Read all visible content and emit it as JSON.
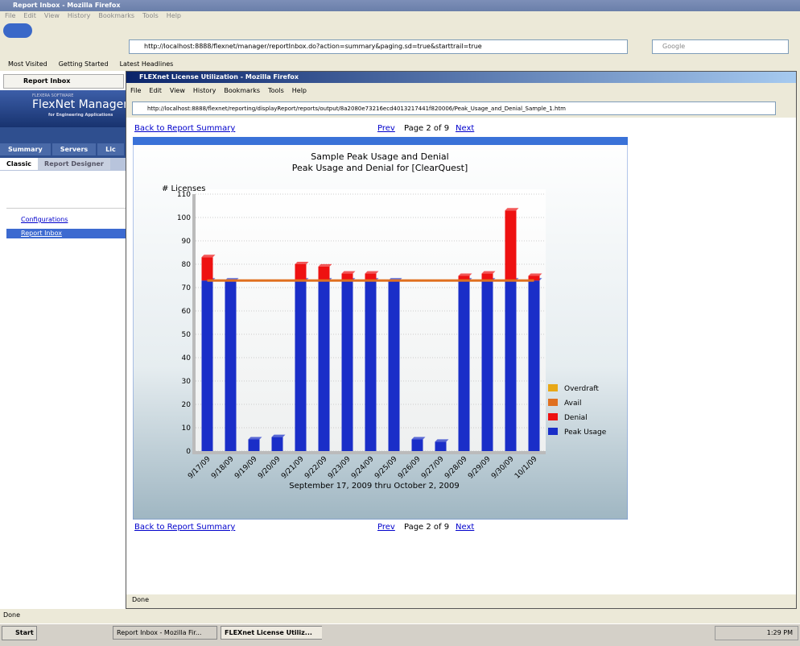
{
  "outer": {
    "title": "Report Inbox - Mozilla Firefox",
    "menu": [
      "File",
      "Edit",
      "View",
      "History",
      "Bookmarks",
      "Tools",
      "Help"
    ],
    "url": "http://localhost:8888/flexnet/manager/reportInbox.do?action=summary&paging.sd=true&starttrail=true",
    "search": "Google",
    "bookmarks": [
      "Most Visited",
      "Getting Started",
      "Latest Headlines"
    ],
    "status": "Done"
  },
  "sidebar": {
    "tab": "Report Inbox",
    "logo_small": "FLEXERA SOFTWARE",
    "logo": "FlexNet Manager",
    "logo_sub": "for Engineering Applications",
    "tabs": [
      "Summary",
      "Servers",
      "Lic"
    ],
    "subtabs": [
      "Classic",
      "Report Designer"
    ],
    "links": [
      "Configurations",
      "Report Inbox"
    ]
  },
  "inner": {
    "title": "FLEXnet License Utilization - Mozilla Firefox",
    "menu": [
      "File",
      "Edit",
      "View",
      "History",
      "Bookmarks",
      "Tools",
      "Help"
    ],
    "url": "http://localhost:8888/flexnet/reporting/displayReport/reports/output/8a2080e73216ecd4013217441f820006/Peak_Usage_and_Denial_Sample_1.htm",
    "status": "Done"
  },
  "nav": {
    "back": "Back to Report Summary",
    "prev": "Prev",
    "page": "Page 2 of 9",
    "next": "Next"
  },
  "chart_data": {
    "type": "bar",
    "stacked": true,
    "title": "Sample Peak Usage and Denial",
    "subtitle": "Peak Usage and Denial for [ClearQuest]",
    "y_label": "# Licenses",
    "x_label": "September 17, 2009 thru October 2, 2009",
    "categories": [
      "9/17/09",
      "9/18/09",
      "9/19/09",
      "9/20/09",
      "9/21/09",
      "9/22/09",
      "9/23/09",
      "9/24/09",
      "9/25/09",
      "9/26/09",
      "9/27/09",
      "9/28/09",
      "9/29/09",
      "9/30/09",
      "10/1/09"
    ],
    "series": [
      {
        "name": "Peak Usage",
        "color": "#1a2ec8",
        "values": [
          73,
          73,
          5,
          6,
          73,
          73,
          73,
          73,
          73,
          5,
          4,
          73,
          73,
          73,
          73
        ]
      },
      {
        "name": "Denial",
        "color": "#ee1111",
        "values": [
          10,
          0,
          0,
          0,
          7,
          6,
          3,
          3,
          0,
          0,
          0,
          2,
          3,
          30,
          2
        ]
      },
      {
        "name": "Avail",
        "color": "#e07020",
        "type": "line",
        "values": [
          73,
          73,
          73,
          73,
          73,
          73,
          73,
          73,
          73,
          73,
          73,
          73,
          73,
          73,
          73
        ]
      },
      {
        "name": "Overdraft",
        "color": "#e8a817",
        "values": [
          0,
          0,
          0,
          0,
          0,
          0,
          0,
          0,
          0,
          0,
          0,
          0,
          0,
          0,
          0
        ]
      }
    ],
    "ylim": [
      0,
      110
    ],
    "yticks": [
      0,
      10,
      20,
      30,
      40,
      50,
      60,
      70,
      80,
      90,
      100,
      110
    ],
    "grid": true,
    "legend": "right"
  },
  "taskbar": {
    "start": "Start",
    "items": [
      "Report Inbox - Mozilla Fir...",
      "FLEXnet License Utiliz..."
    ],
    "clock": "1:29 PM"
  }
}
